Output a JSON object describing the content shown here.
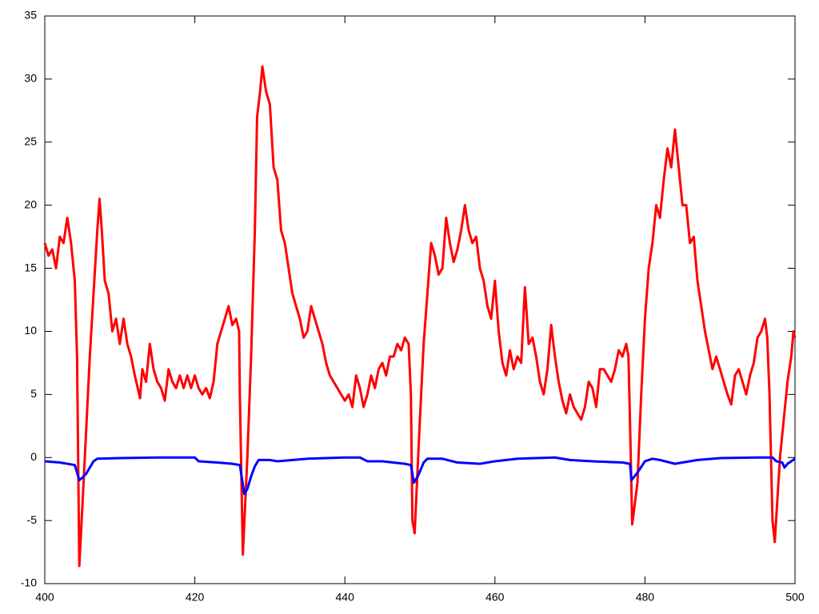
{
  "chart_data": {
    "type": "line",
    "xlim": [
      400,
      500
    ],
    "xticks": [
      400,
      420,
      440,
      460,
      480,
      500
    ],
    "ylim": [
      -10,
      35
    ],
    "yticks": [
      -10,
      -5,
      0,
      5,
      10,
      15,
      20,
      25,
      30,
      35
    ],
    "series": [
      {
        "color": "#ff0000",
        "x": [
          400,
          400.5,
          401,
          401.5,
          402,
          402.5,
          403,
          403.5,
          404,
          404.3,
          404.6,
          405,
          405.5,
          406,
          406.5,
          407,
          407.3,
          407.6,
          408,
          408.5,
          409,
          409.5,
          410,
          410.5,
          411,
          411.5,
          412,
          412.7,
          413,
          413.5,
          414,
          414.5,
          415,
          415.5,
          416,
          416.5,
          417,
          417.5,
          418,
          418.5,
          419,
          419.5,
          420,
          420.5,
          421,
          421.5,
          422,
          422.5,
          423,
          423.5,
          424,
          424.5,
          425,
          425.5,
          425.9,
          426,
          426.4,
          427,
          427.5,
          428,
          428.3,
          428.7,
          429,
          429.5,
          430,
          430.5,
          431,
          431.5,
          432,
          432.5,
          433,
          433.5,
          434,
          434.5,
          435,
          435.5,
          436,
          436.5,
          437,
          437.5,
          438,
          438.5,
          439,
          439.5,
          440,
          440.5,
          441,
          441.5,
          442,
          442.5,
          443,
          443.5,
          444,
          444.5,
          445,
          445.5,
          446,
          446.5,
          447,
          447.5,
          448,
          448.5,
          448.8,
          449,
          449.3,
          450,
          450.5,
          451,
          451.5,
          452,
          452.5,
          453,
          453.5,
          454,
          454.5,
          455,
          455.5,
          456,
          456.5,
          457,
          457.5,
          458,
          458.5,
          459,
          459.5,
          460,
          460.5,
          461,
          461.5,
          462,
          462.5,
          463,
          463.5,
          464,
          464.5,
          465,
          465.5,
          466,
          466.5,
          467,
          467.5,
          468,
          468.5,
          469,
          469.5,
          470,
          470.5,
          471,
          471.5,
          472,
          472.5,
          473,
          473.5,
          474,
          474.5,
          475,
          475.5,
          476,
          476.5,
          477,
          477.5,
          477.8,
          478,
          478.3,
          479,
          479.5,
          480,
          480.5,
          481,
          481.5,
          482,
          482.5,
          483,
          483.5,
          484,
          484.5,
          485,
          485.5,
          486,
          486.5,
          487,
          487.5,
          488,
          488.5,
          489,
          489.5,
          490,
          490.5,
          491,
          491.5,
          492,
          492.5,
          493,
          493.5,
          494,
          494.5,
          495,
          495.5,
          496,
          496.3,
          496.6,
          497,
          497.3,
          498,
          498.5,
          499,
          499.5,
          499.8,
          500
        ],
        "values": [
          17,
          16,
          16.5,
          15,
          17.5,
          17,
          19,
          17,
          14,
          8,
          -8.6,
          -4,
          2,
          8,
          13,
          18,
          20.5,
          18,
          14,
          13,
          10,
          11,
          9,
          11,
          9,
          8,
          6.5,
          4.7,
          7,
          6,
          9,
          7,
          6,
          5.5,
          4.5,
          7,
          6,
          5.5,
          6.5,
          5.5,
          6.5,
          5.5,
          6.5,
          5.5,
          5,
          5.5,
          4.7,
          6,
          9,
          10,
          11,
          12,
          10.5,
          11,
          10,
          5,
          -7.7,
          0,
          8,
          18,
          27,
          29,
          31,
          29,
          28,
          23,
          22,
          18,
          17,
          15,
          13,
          12,
          11,
          9.5,
          10,
          12,
          11,
          10,
          9,
          7.5,
          6.5,
          6,
          5.5,
          5,
          4.5,
          5,
          4,
          6.5,
          5.5,
          4,
          5,
          6.5,
          5.5,
          7,
          7.5,
          6.5,
          8,
          8,
          9,
          8.5,
          9.5,
          9,
          5,
          -5,
          -6,
          3,
          9,
          13,
          17,
          16,
          14.5,
          15,
          19,
          17,
          15.5,
          16.5,
          18,
          20,
          18,
          17,
          17.5,
          15,
          14,
          12,
          11,
          14,
          10,
          7.5,
          6.5,
          8.5,
          7,
          8,
          7.5,
          13.5,
          9,
          9.5,
          8,
          6,
          5,
          7,
          10.5,
          8,
          6,
          4.5,
          3.5,
          5,
          4,
          3.5,
          3,
          4,
          6,
          5.5,
          4,
          7,
          7,
          6.5,
          6,
          7,
          8.5,
          8,
          9,
          8,
          3,
          -5.3,
          -2,
          5,
          11,
          15,
          17,
          20,
          19,
          22,
          24.5,
          23,
          26,
          23,
          20,
          20,
          17,
          17.5,
          14,
          12,
          10,
          8.5,
          7,
          8,
          7,
          6,
          5,
          4.2,
          6.5,
          7,
          6,
          5,
          6.5,
          7.5,
          9.5,
          10,
          11,
          9.5,
          5,
          -5,
          -6.7,
          0,
          3,
          6,
          8,
          10,
          9.5
        ]
      },
      {
        "color": "#0000ff",
        "x": [
          400,
          402,
          404,
          404.6,
          405,
          405.5,
          406,
          406.5,
          407,
          410,
          415,
          420,
          420.5,
          423,
          425,
          426,
          426.6,
          427,
          427.5,
          428,
          428.5,
          430,
          431,
          435,
          440,
          442,
          443,
          445,
          448,
          448.8,
          449.2,
          449.8,
          450.5,
          451,
          453,
          455,
          458,
          460,
          463,
          468,
          470,
          473,
          477,
          478,
          478.2,
          479,
          480,
          481,
          482,
          484,
          485,
          487,
          490,
          495,
          497,
          497.5,
          498.3,
          498.6,
          499,
          500
        ],
        "values": [
          -0.3,
          -0.4,
          -0.6,
          -1.8,
          -1.6,
          -1.3,
          -0.8,
          -0.3,
          -0.1,
          -0.05,
          0,
          0,
          -0.3,
          -0.4,
          -0.5,
          -0.6,
          -2.9,
          -2.5,
          -1.5,
          -0.7,
          -0.2,
          -0.2,
          -0.3,
          -0.1,
          0,
          0,
          -0.3,
          -0.3,
          -0.5,
          -0.6,
          -2,
          -1.4,
          -0.4,
          -0.1,
          -0.1,
          -0.4,
          -0.5,
          -0.3,
          -0.1,
          0,
          -0.2,
          -0.3,
          -0.4,
          -0.5,
          -1.8,
          -1.2,
          -0.3,
          -0.1,
          -0.2,
          -0.5,
          -0.4,
          -0.2,
          -0.05,
          0,
          0,
          -0.3,
          -0.4,
          -0.8,
          -0.5,
          -0.1
        ]
      }
    ]
  }
}
